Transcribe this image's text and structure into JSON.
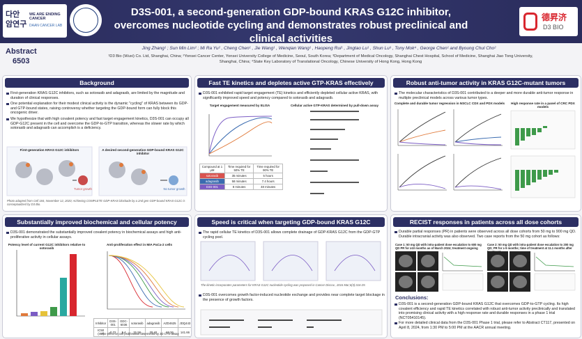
{
  "header": {
    "title": "D3S-001, a second-generation GDP-bound KRAS G12C inhibitor, overcomes nucleotide cycling and demonstrates robust preclinical and clinical activities",
    "logo_left_1": "WE ARE ENDING CANCER",
    "logo_left_2": "DAAN CANCER LAB",
    "logo_right_1": "德昇济",
    "logo_right_2": "D3 BIO"
  },
  "abstract": {
    "label": "Abstract",
    "number": "6503"
  },
  "authors": "Jing Zhang¹ ; Sun Min Lim² ; Mi Ra Yu² , Cheng Chen¹ , Jie Wang¹ , Wenqian Wang¹ , Haopeng Rui¹ , Jingtao Lu¹ , Shun Lu³ , Tony Mok⁴ , George Chen¹ and Byoung Chul Cho²",
  "affiliations": "¹D3 Bio (Wuxi) Co. Ltd, Shanghai, China; ²Yonsei Cancer Center, Yonsei University College of Medicine, Seoul, South Korea; ³Department of Medical Oncology, Shanghai Chest Hospital, School of Medicine, Shanghai Jiao Tong University, Shanghai, China; ⁴State Key Laboratory of Translational Oncology, Chinese University of Hong Kong, Hong Kong",
  "background": {
    "title": "Background",
    "bullets": [
      "First-generation KRAS G12C inhibitors, such as sotorasib and adagrasib, are limited by the magnitude and duration of clinical responses.",
      "One potential explanation for their modest clinical activity is the dynamic \"cycling\" of KRAS between its GDP- and GTP-bound states, raising controversy whether targeting the GDP-bound form can fully block this oncogenic driver.",
      "We hypothesize that with high covalent potency and fast target engagement kinetics, D3S-001 can occupy all GDP-G12C present in the cell and overcome the GDP-to-GTP transition, whereas the slower rate by which sotorasib and adagrasib can accomplish is a deficiency."
    ],
    "figure_left": "First-generation KRAS G12C inhibitors",
    "figure_right": "A desired second-generation GDP-bound KRAS G12C inhibitor",
    "tumor_growth": "Tumor growth",
    "no_tumor_growth": "No tumor growth",
    "note": "Photo adapted from Cell 184, November 12, 2020; Achieving COMPLETE GDP-KRAS blockade by a 2nd gen GDP-bound KRAS G12C is conceptualized by D3 Bio."
  },
  "fast_te": {
    "title": "Fast TE kinetics and depletes active GTP-KRAS effectively",
    "bullet": "D3S-001 exhibited rapid target engagement (TE) kinetics and efficiently depleted cellular active KRAS, with significantly improved speed and potency compared to sotorasib and adagrasib.",
    "sub_left": "Target engagement measured by ELISA",
    "sub_right": "Cellular active GTP-KRAS determined by pull-down assay",
    "table": {
      "header": [
        "Compound at 1 µM",
        "Time required for 50% TE",
        "Time required for 90% TE"
      ],
      "rows": [
        [
          "sotorasib",
          "35 minutes",
          "5 hours"
        ],
        [
          "adagrasib",
          "58 minutes",
          "7.4 hours"
        ],
        [
          "D3S-001",
          "8 minutes",
          "48 minutes"
        ]
      ]
    }
  },
  "anti_tumor": {
    "title": "Robust anti-tumor activity in KRAS G12C-mutant tumors",
    "bullet": "The molecular characteristics of D3S-001 contributed to a deeper and more durable anti-tumor response in multiple preclinical models across various tumor types.",
    "sub_left": "Complete and durable tumor regression in NSCLC CDX and PDX models",
    "sub_right": "High response rate in a panel of CRC PDX models"
  },
  "potency": {
    "title": "Substantially improved biochemical and cellular potency",
    "bullet": "D3S-001 demonstrated the substantially improved covalent potency in biochemical assays and high anti-proliferative activity in cellular assays.",
    "sub_left": "Potency level of current G12C inhibitors relative to sotorasib",
    "sub_right": "Anti-proliferation effect in MIA PaCa-2 cells",
    "table": {
      "header": [
        "Inhibitor",
        "D3S-001",
        "GDC-6036",
        "sotorasib",
        "adagrasib",
        "AZD4625",
        "JDQ443"
      ],
      "row": [
        "IC50 (nM)",
        "0.72",
        "5.4",
        "31.56",
        "29.42",
        "68.36",
        "141.66"
      ]
    },
    "caption": "The effect on cell proliferation determined by 3D CTG assay"
  },
  "speed": {
    "title": "Speed is critical when targeting GDP-bound KRAS G12C",
    "bullet_1": "The rapid cellular TE kinetics of D3S-001 allows complete drainage of GDP-KRAS G12C from the GDP-GTP cycling pool.",
    "note": "The kinetic incorporates parameters for KRAS G12C nucleotide cycling was proposed in Cancer Discov., 2016 Mar;6(3):316-29.",
    "bullet_2": "D3S-001 overcomes growth factor-induced nucleotide exchange and provides near complete target blockage in the presence of growth factors."
  },
  "recist": {
    "title": "RECIST responses in patients across all dose cohorts",
    "bullet": "Durable partial responses (PR) in patients were observed across all dose cohorts from 50 mg to 900 mg QD. Durable intracranial activity was also observed. Two case reports from the 50 mg cohort as follows:",
    "case_1": "Case 1: 50 mg QD with intra-patient dose escalation to 600 mg QD PR for ≥10 months as of March 2024; treatment ongoing",
    "case_2": "Case 2: 50 mg QD with intra-patient dose escalation to 200 mg QD; PR for ≥ 9 months; time of treatment at 11.1 months after treatment",
    "conclusions_title": "Conclusions:",
    "conclusions": [
      "D3S-001 is a second-generation GDP-bound KRAS G12C that overcomes GDP-to-GTP cycling. Its high covalent efficiency and rapid TE kinetics correlated with robust anti-tumor activity preclinically and translated into promising clinical activity with a high response rate and durable responses in a phase 1 trial (NCT05410145).",
      "For more detailed clinical data from the D3S-001 Phase 1 trial, please refer to Abstract CT117, presented on April 8, 2024, from 1:30 PM to 5:00 PM at the AACR annual meeting."
    ]
  }
}
